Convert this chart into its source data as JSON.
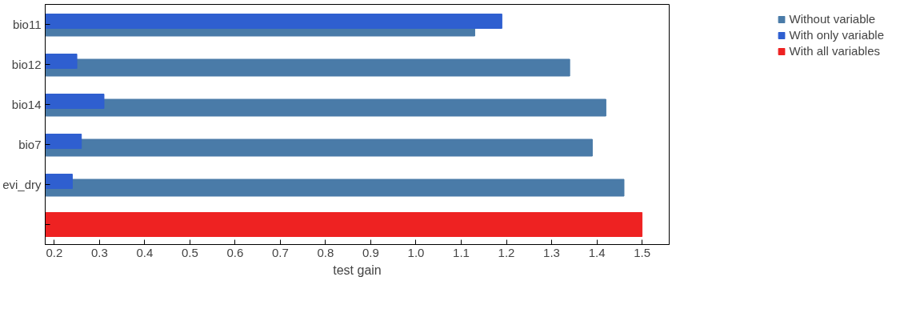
{
  "chart_data": {
    "type": "bar",
    "orientation": "horizontal",
    "xlabel": "test gain",
    "categories": [
      "bio11",
      "bio12",
      "bio14",
      "bio7",
      "evi_dry",
      null
    ],
    "series": [
      {
        "name": "Without variable",
        "color": "#4a7ba8",
        "values": [
          1.13,
          1.34,
          1.42,
          1.39,
          1.46,
          null
        ]
      },
      {
        "name": "With only variable",
        "color": "#2f5fd0",
        "values": [
          1.19,
          0.25,
          0.31,
          0.26,
          0.24,
          null
        ]
      },
      {
        "name": "With all variables",
        "color": "#ee2222",
        "values": [
          null,
          null,
          null,
          null,
          null,
          1.5
        ]
      }
    ],
    "xlim": [
      0.18,
      1.56
    ],
    "xticks": [
      0.2,
      0.3,
      0.4,
      0.5,
      0.6,
      0.7,
      0.8,
      0.9,
      {
        "value": 1.0,
        "label": "1.0"
      },
      1.1,
      1.2,
      1.3,
      1.4,
      1.5
    ],
    "grid": false,
    "legend": "top right"
  }
}
